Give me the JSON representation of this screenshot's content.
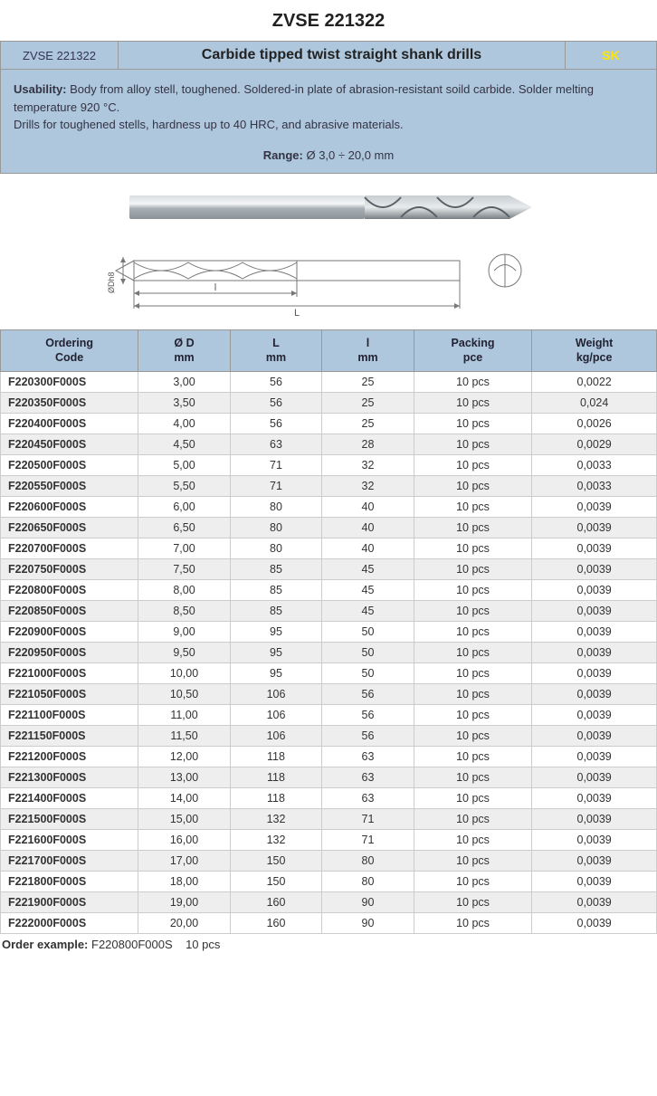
{
  "page": {
    "title": "ZVSE 221322"
  },
  "header": {
    "code": "ZVSE 221322",
    "title": "Carbide tipped twist straight shank drills",
    "badge": "SK"
  },
  "description": {
    "usability_label": "Usability:",
    "usability_text": "Body from alloy stell, toughened. Soldered-in plate of abrasion-resistant soild carbide. Solder melting temperature 920 °C.",
    "line2": "Drills for toughened stells, hardness up to 40 HRC, and abrasive materials.",
    "range_label": "Range:",
    "range_text": "Ø 3,0 ÷ 20,0 mm"
  },
  "diagram": {
    "label_l_small": "l",
    "label_L_large": "L",
    "label_diam": "ØDh8"
  },
  "table": {
    "columns": [
      {
        "line1": "Ordering",
        "line2": "Code",
        "width": "21%"
      },
      {
        "line1": "Ø D",
        "line2": "mm",
        "width": "14%"
      },
      {
        "line1": "L",
        "line2": "mm",
        "width": "14%"
      },
      {
        "line1": "l",
        "line2": "mm",
        "width": "14%"
      },
      {
        "line1": "Packing",
        "line2": "pce",
        "width": "18%"
      },
      {
        "line1": "Weight",
        "line2": "kg/pce",
        "width": "19%"
      }
    ],
    "rows": [
      [
        "F220300F000S",
        "3,00",
        "56",
        "25",
        "10 pcs",
        "0,0022"
      ],
      [
        "F220350F000S",
        "3,50",
        "56",
        "25",
        "10 pcs",
        "0,024"
      ],
      [
        "F220400F000S",
        "4,00",
        "56",
        "25",
        "10 pcs",
        "0,0026"
      ],
      [
        "F220450F000S",
        "4,50",
        "63",
        "28",
        "10 pcs",
        "0,0029"
      ],
      [
        "F220500F000S",
        "5,00",
        "71",
        "32",
        "10 pcs",
        "0,0033"
      ],
      [
        "F220550F000S",
        "5,50",
        "71",
        "32",
        "10 pcs",
        "0,0033"
      ],
      [
        "F220600F000S",
        "6,00",
        "80",
        "40",
        "10 pcs",
        "0,0039"
      ],
      [
        "F220650F000S",
        "6,50",
        "80",
        "40",
        "10 pcs",
        "0,0039"
      ],
      [
        "F220700F000S",
        "7,00",
        "80",
        "40",
        "10 pcs",
        "0,0039"
      ],
      [
        "F220750F000S",
        "7,50",
        "85",
        "45",
        "10 pcs",
        "0,0039"
      ],
      [
        "F220800F000S",
        "8,00",
        "85",
        "45",
        "10 pcs",
        "0,0039"
      ],
      [
        "F220850F000S",
        "8,50",
        "85",
        "45",
        "10 pcs",
        "0,0039"
      ],
      [
        "F220900F000S",
        "9,00",
        "95",
        "50",
        "10 pcs",
        "0,0039"
      ],
      [
        "F220950F000S",
        "9,50",
        "95",
        "50",
        "10 pcs",
        "0,0039"
      ],
      [
        "F221000F000S",
        "10,00",
        "95",
        "50",
        "10 pcs",
        "0,0039"
      ],
      [
        "F221050F000S",
        "10,50",
        "106",
        "56",
        "10 pcs",
        "0,0039"
      ],
      [
        "F221100F000S",
        "11,00",
        "106",
        "56",
        "10 pcs",
        "0,0039"
      ],
      [
        "F221150F000S",
        "11,50",
        "106",
        "56",
        "10 pcs",
        "0,0039"
      ],
      [
        "F221200F000S",
        "12,00",
        "118",
        "63",
        "10 pcs",
        "0,0039"
      ],
      [
        "F221300F000S",
        "13,00",
        "118",
        "63",
        "10 pcs",
        "0,0039"
      ],
      [
        "F221400F000S",
        "14,00",
        "118",
        "63",
        "10 pcs",
        "0,0039"
      ],
      [
        "F221500F000S",
        "15,00",
        "132",
        "71",
        "10 pcs",
        "0,0039"
      ],
      [
        "F221600F000S",
        "16,00",
        "132",
        "71",
        "10 pcs",
        "0,0039"
      ],
      [
        "F221700F000S",
        "17,00",
        "150",
        "80",
        "10 pcs",
        "0,0039"
      ],
      [
        "F221800F000S",
        "18,00",
        "150",
        "80",
        "10 pcs",
        "0,0039"
      ],
      [
        "F221900F000S",
        "19,00",
        "160",
        "90",
        "10 pcs",
        "0,0039"
      ],
      [
        "F222000F000S",
        "20,00",
        "160",
        "90",
        "10 pcs",
        "0,0039"
      ]
    ]
  },
  "order_example": {
    "label": "Order example:",
    "value": "F220800F000S    10 pcs"
  },
  "styling": {
    "header_bg": "#aec7dc",
    "row_even_bg": "#eeeeee",
    "row_odd_bg": "#ffffff",
    "border_color": "#999999",
    "badge_color": "#ffe600",
    "body_fontsize": 13,
    "title_fontsize": 20,
    "table_fontsize": 12.5
  }
}
